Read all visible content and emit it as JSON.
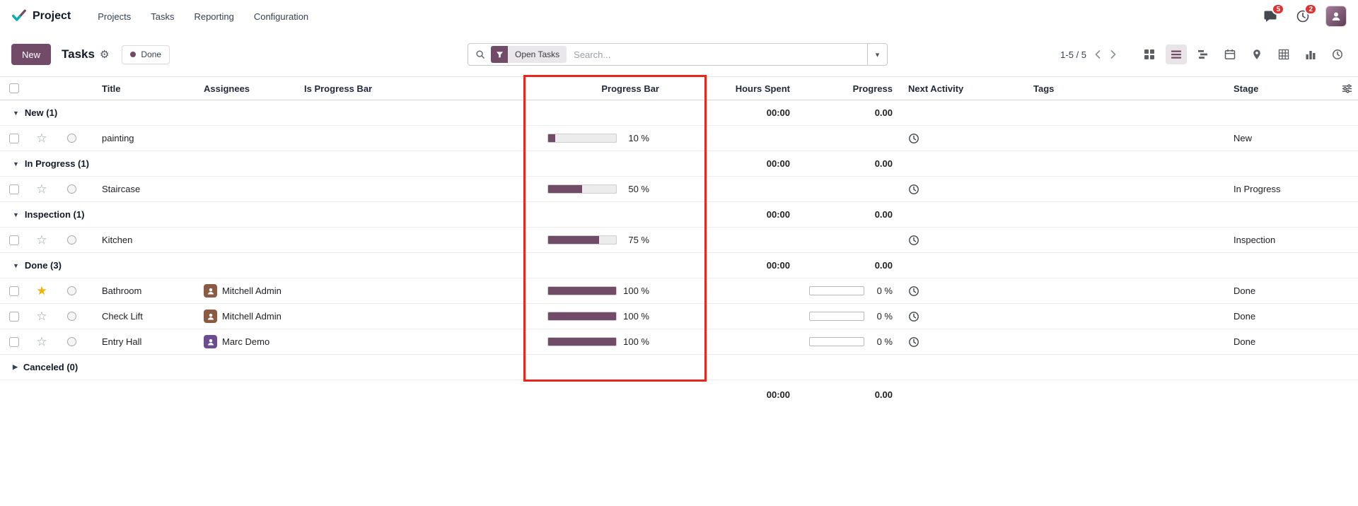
{
  "colors": {
    "accent": "#714B67",
    "highlight_red": "#E7261D",
    "star_gold": "#F2B200",
    "badge_red": "#E03131",
    "progress_fill": "#714B67"
  },
  "nav": {
    "app_name": "Project",
    "menus": [
      {
        "label": "Projects"
      },
      {
        "label": "Tasks"
      },
      {
        "label": "Reporting"
      },
      {
        "label": "Configuration"
      }
    ],
    "messages_badge": "5",
    "activities_badge": "2"
  },
  "control_panel": {
    "new_button_label": "New",
    "title": "Tasks",
    "done_chip_label": "Done",
    "search": {
      "facet_label": "Open Tasks",
      "placeholder": "Search..."
    },
    "pager_text": "1-5 / 5",
    "view_switcher": [
      {
        "name": "kanban",
        "active": false
      },
      {
        "name": "list",
        "active": true
      },
      {
        "name": "gantt",
        "active": false
      },
      {
        "name": "calendar",
        "active": false
      },
      {
        "name": "map",
        "active": false
      },
      {
        "name": "pivot",
        "active": false
      },
      {
        "name": "graph",
        "active": false
      },
      {
        "name": "activity",
        "active": false
      }
    ]
  },
  "table": {
    "columns": {
      "title": "Title",
      "assignees": "Assignees",
      "is_progress_bar": "Is Progress Bar",
      "progress_bar": "Progress Bar",
      "hours_spent": "Hours Spent",
      "progress": "Progress",
      "next_activity": "Next Activity",
      "tags": "Tags",
      "stage": "Stage"
    },
    "groups": [
      {
        "label": "New (1)",
        "collapsed": false,
        "hours_spent": "00:00",
        "progress": "0.00",
        "rows": [
          {
            "title": "painting",
            "assignee": null,
            "progress_percent": 10,
            "progress_label": "10 %",
            "hours_progress_label": null,
            "has_activity": true,
            "stage": "New",
            "starred": false
          }
        ]
      },
      {
        "label": "In Progress (1)",
        "collapsed": false,
        "hours_spent": "00:00",
        "progress": "0.00",
        "rows": [
          {
            "title": "Staircase",
            "assignee": null,
            "progress_percent": 50,
            "progress_label": "50 %",
            "hours_progress_label": null,
            "has_activity": true,
            "stage": "In Progress",
            "starred": false
          }
        ]
      },
      {
        "label": "Inspection (1)",
        "collapsed": false,
        "hours_spent": "00:00",
        "progress": "0.00",
        "rows": [
          {
            "title": "Kitchen",
            "assignee": null,
            "progress_percent": 75,
            "progress_label": "75 %",
            "hours_progress_label": null,
            "has_activity": true,
            "stage": "Inspection",
            "starred": false
          }
        ]
      },
      {
        "label": "Done (3)",
        "collapsed": false,
        "hours_spent": "00:00",
        "progress": "0.00",
        "rows": [
          {
            "title": "Bathroom",
            "assignee": {
              "name": "Mitchell Admin",
              "color": "#8a5a44"
            },
            "progress_percent": 100,
            "progress_label": "100 %",
            "hours_progress_label": "0 %",
            "has_activity": true,
            "stage": "Done",
            "starred": true
          },
          {
            "title": "Check Lift",
            "assignee": {
              "name": "Mitchell Admin",
              "color": "#8a5a44"
            },
            "progress_percent": 100,
            "progress_label": "100 %",
            "hours_progress_label": "0 %",
            "has_activity": true,
            "stage": "Done",
            "starred": false
          },
          {
            "title": "Entry Hall",
            "assignee": {
              "name": "Marc Demo",
              "color": "#6b4d8f"
            },
            "progress_percent": 100,
            "progress_label": "100 %",
            "hours_progress_label": "0 %",
            "has_activity": true,
            "stage": "Done",
            "starred": false
          }
        ]
      },
      {
        "label": "Canceled (0)",
        "collapsed": true,
        "hours_spent": null,
        "progress": null,
        "rows": []
      }
    ],
    "footer": {
      "hours_spent": "00:00",
      "progress": "0.00"
    }
  }
}
